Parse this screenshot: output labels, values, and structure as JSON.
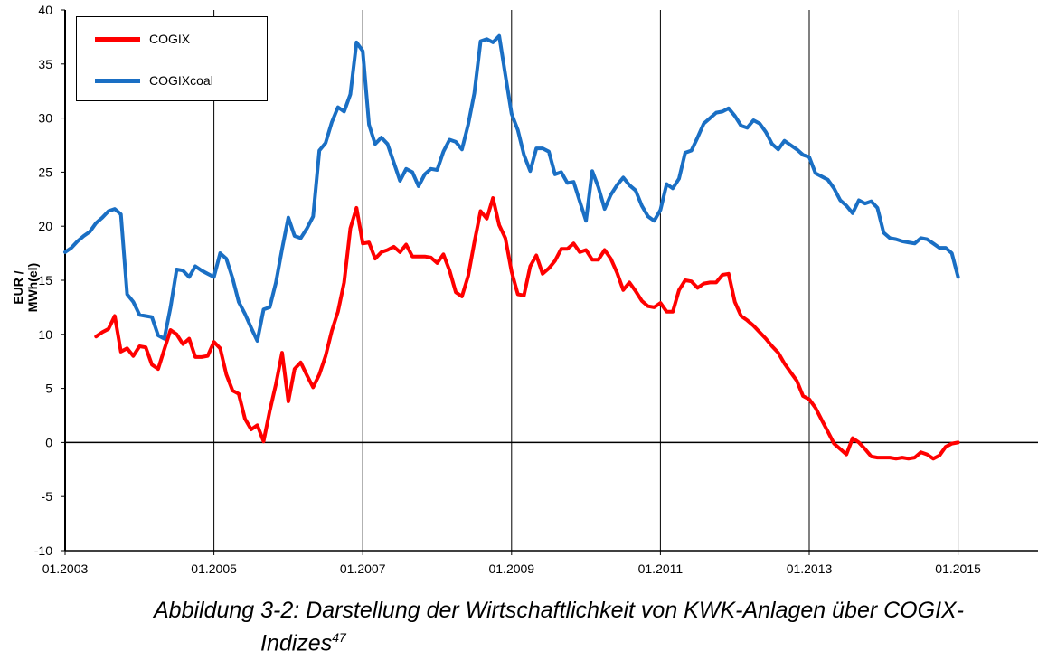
{
  "chart_data": {
    "type": "line",
    "ylabel": "EUR / MWh(el)",
    "xlabel": "",
    "ylim": [
      -10,
      40
    ],
    "yticks": [
      "40",
      "35",
      "30",
      "25",
      "20",
      "15",
      "10",
      "5",
      "0",
      "-5",
      "-10"
    ],
    "xticks": [
      "01.2003",
      "01.2005",
      "01.2007",
      "01.2009",
      "01.2011",
      "01.2013",
      "01.2015"
    ],
    "grid": "vertical at x ticks",
    "legend_position": "top-left",
    "series": [
      {
        "name": "COGIX",
        "color": "#ff0000",
        "points": [
          [
            "2003-06",
            9.8
          ],
          [
            "2003-07",
            10.2
          ],
          [
            "2003-08",
            10.5
          ],
          [
            "2003-09",
            11.7
          ],
          [
            "2003-10",
            8.4
          ],
          [
            "2003-11",
            8.7
          ],
          [
            "2003-12",
            8.0
          ],
          [
            "2004-01",
            8.9
          ],
          [
            "2004-02",
            8.8
          ],
          [
            "2004-03",
            7.2
          ],
          [
            "2004-04",
            6.8
          ],
          [
            "2004-05",
            8.6
          ],
          [
            "2004-06",
            10.4
          ],
          [
            "2004-07",
            10.0
          ],
          [
            "2004-08",
            9.1
          ],
          [
            "2004-09",
            9.6
          ],
          [
            "2004-10",
            7.9
          ],
          [
            "2004-11",
            7.9
          ],
          [
            "2004-12",
            8.0
          ],
          [
            "2005-01",
            9.3
          ],
          [
            "2005-02",
            8.7
          ],
          [
            "2005-03",
            6.3
          ],
          [
            "2005-04",
            4.8
          ],
          [
            "2005-05",
            4.5
          ],
          [
            "2005-06",
            2.2
          ],
          [
            "2005-07",
            1.2
          ],
          [
            "2005-08",
            1.6
          ],
          [
            "2005-09",
            0.1
          ],
          [
            "2005-10",
            2.9
          ],
          [
            "2005-11",
            5.4
          ],
          [
            "2005-12",
            8.3
          ],
          [
            "2006-01",
            3.8
          ],
          [
            "2006-02",
            6.8
          ],
          [
            "2006-03",
            7.4
          ],
          [
            "2006-04",
            6.2
          ],
          [
            "2006-05",
            5.1
          ],
          [
            "2006-06",
            6.3
          ],
          [
            "2006-07",
            8.0
          ],
          [
            "2006-08",
            10.3
          ],
          [
            "2006-09",
            12.1
          ],
          [
            "2006-10",
            14.8
          ],
          [
            "2006-11",
            19.8
          ],
          [
            "2006-12",
            21.7
          ],
          [
            "2007-01",
            18.4
          ],
          [
            "2007-02",
            18.5
          ],
          [
            "2007-03",
            17.0
          ],
          [
            "2007-04",
            17.6
          ],
          [
            "2007-05",
            17.8
          ],
          [
            "2007-06",
            18.1
          ],
          [
            "2007-07",
            17.6
          ],
          [
            "2007-08",
            18.3
          ],
          [
            "2007-09",
            17.2
          ],
          [
            "2007-10",
            17.2
          ],
          [
            "2007-11",
            17.2
          ],
          [
            "2007-12",
            17.1
          ],
          [
            "2008-01",
            16.6
          ],
          [
            "2008-02",
            17.4
          ],
          [
            "2008-03",
            15.9
          ],
          [
            "2008-04",
            13.9
          ],
          [
            "2008-05",
            13.5
          ],
          [
            "2008-06",
            15.4
          ],
          [
            "2008-07",
            18.5
          ],
          [
            "2008-08",
            21.4
          ],
          [
            "2008-09",
            20.7
          ],
          [
            "2008-10",
            22.6
          ],
          [
            "2008-11",
            20.1
          ],
          [
            "2008-12",
            18.9
          ],
          [
            "2009-01",
            15.8
          ],
          [
            "2009-02",
            13.7
          ],
          [
            "2009-03",
            13.6
          ],
          [
            "2009-04",
            16.3
          ],
          [
            "2009-05",
            17.3
          ],
          [
            "2009-06",
            15.6
          ],
          [
            "2009-07",
            16.1
          ],
          [
            "2009-08",
            16.8
          ],
          [
            "2009-09",
            17.9
          ],
          [
            "2009-10",
            17.9
          ],
          [
            "2009-11",
            18.4
          ],
          [
            "2009-12",
            17.6
          ],
          [
            "2010-01",
            17.8
          ],
          [
            "2010-02",
            16.9
          ],
          [
            "2010-03",
            16.9
          ],
          [
            "2010-04",
            17.8
          ],
          [
            "2010-05",
            17.0
          ],
          [
            "2010-06",
            15.7
          ],
          [
            "2010-07",
            14.1
          ],
          [
            "2010-08",
            14.8
          ],
          [
            "2010-09",
            14.0
          ],
          [
            "2010-10",
            13.1
          ],
          [
            "2010-11",
            12.6
          ],
          [
            "2010-12",
            12.5
          ],
          [
            "2011-01",
            12.9
          ],
          [
            "2011-02",
            12.1
          ],
          [
            "2011-03",
            12.1
          ],
          [
            "2011-04",
            14.1
          ],
          [
            "2011-05",
            15.0
          ],
          [
            "2011-06",
            14.9
          ],
          [
            "2011-07",
            14.3
          ],
          [
            "2011-08",
            14.7
          ],
          [
            "2011-09",
            14.8
          ],
          [
            "2011-10",
            14.8
          ],
          [
            "2011-11",
            15.5
          ],
          [
            "2011-12",
            15.6
          ],
          [
            "2012-01",
            13.0
          ],
          [
            "2012-02",
            11.7
          ],
          [
            "2012-03",
            11.3
          ],
          [
            "2012-04",
            10.8
          ],
          [
            "2012-05",
            10.2
          ],
          [
            "2012-06",
            9.6
          ],
          [
            "2012-07",
            8.9
          ],
          [
            "2012-08",
            8.3
          ],
          [
            "2012-09",
            7.3
          ],
          [
            "2012-10",
            6.5
          ],
          [
            "2012-11",
            5.7
          ],
          [
            "2012-12",
            4.3
          ],
          [
            "2013-01",
            4.0
          ],
          [
            "2013-02",
            3.2
          ],
          [
            "2013-03",
            2.1
          ],
          [
            "2013-04",
            1.0
          ],
          [
            "2013-05",
            -0.1
          ],
          [
            "2013-06",
            -0.6
          ],
          [
            "2013-07",
            -1.1
          ],
          [
            "2013-08",
            0.4
          ],
          [
            "2013-09",
            0.0
          ],
          [
            "2013-10",
            -0.6
          ],
          [
            "2013-11",
            -1.3
          ],
          [
            "2013-12",
            -1.4
          ],
          [
            "2014-01",
            -1.4
          ],
          [
            "2014-02",
            -1.4
          ],
          [
            "2014-03",
            -1.5
          ],
          [
            "2014-04",
            -1.4
          ],
          [
            "2014-05",
            -1.5
          ],
          [
            "2014-06",
            -1.4
          ],
          [
            "2014-07",
            -0.9
          ],
          [
            "2014-08",
            -1.1
          ],
          [
            "2014-09",
            -1.5
          ],
          [
            "2014-10",
            -1.2
          ],
          [
            "2014-11",
            -0.4
          ],
          [
            "2014-12",
            -0.1
          ],
          [
            "2015-01",
            0.0
          ]
        ]
      },
      {
        "name": "COGIXcoal",
        "color": "#1a6fc4",
        "points": [
          [
            "2003-01",
            17.6
          ],
          [
            "2003-02",
            18.0
          ],
          [
            "2003-03",
            18.6
          ],
          [
            "2003-04",
            19.1
          ],
          [
            "2003-05",
            19.5
          ],
          [
            "2003-06",
            20.3
          ],
          [
            "2003-07",
            20.8
          ],
          [
            "2003-08",
            21.4
          ],
          [
            "2003-09",
            21.6
          ],
          [
            "2003-10",
            21.1
          ],
          [
            "2003-11",
            13.7
          ],
          [
            "2003-12",
            13.0
          ],
          [
            "2004-01",
            11.8
          ],
          [
            "2004-02",
            11.7
          ],
          [
            "2004-03",
            11.6
          ],
          [
            "2004-04",
            9.9
          ],
          [
            "2004-05",
            9.6
          ],
          [
            "2004-06",
            12.5
          ],
          [
            "2004-07",
            16.0
          ],
          [
            "2004-08",
            15.9
          ],
          [
            "2004-09",
            15.3
          ],
          [
            "2004-10",
            16.3
          ],
          [
            "2004-11",
            15.9
          ],
          [
            "2004-12",
            15.6
          ],
          [
            "2005-01",
            15.3
          ],
          [
            "2005-02",
            17.5
          ],
          [
            "2005-03",
            17.0
          ],
          [
            "2005-04",
            15.2
          ],
          [
            "2005-05",
            13.0
          ],
          [
            "2005-06",
            11.9
          ],
          [
            "2005-07",
            10.6
          ],
          [
            "2005-08",
            9.4
          ],
          [
            "2005-09",
            12.3
          ],
          [
            "2005-10",
            12.5
          ],
          [
            "2005-11",
            14.8
          ],
          [
            "2005-12",
            17.9
          ],
          [
            "2006-01",
            20.8
          ],
          [
            "2006-02",
            19.1
          ],
          [
            "2006-03",
            18.9
          ],
          [
            "2006-04",
            19.8
          ],
          [
            "2006-05",
            20.9
          ],
          [
            "2006-06",
            27.0
          ],
          [
            "2006-07",
            27.7
          ],
          [
            "2006-08",
            29.6
          ],
          [
            "2006-09",
            31.0
          ],
          [
            "2006-10",
            30.6
          ],
          [
            "2006-11",
            32.2
          ],
          [
            "2006-12",
            37.0
          ],
          [
            "2007-01",
            36.2
          ],
          [
            "2007-02",
            29.4
          ],
          [
            "2007-03",
            27.6
          ],
          [
            "2007-04",
            28.2
          ],
          [
            "2007-05",
            27.6
          ],
          [
            "2007-06",
            25.9
          ],
          [
            "2007-07",
            24.2
          ],
          [
            "2007-08",
            25.3
          ],
          [
            "2007-09",
            25.0
          ],
          [
            "2007-10",
            23.7
          ],
          [
            "2007-11",
            24.8
          ],
          [
            "2007-12",
            25.3
          ],
          [
            "2008-01",
            25.2
          ],
          [
            "2008-02",
            26.9
          ],
          [
            "2008-03",
            28.0
          ],
          [
            "2008-04",
            27.8
          ],
          [
            "2008-05",
            27.1
          ],
          [
            "2008-06",
            29.4
          ],
          [
            "2008-07",
            32.3
          ],
          [
            "2008-08",
            37.1
          ],
          [
            "2008-09",
            37.3
          ],
          [
            "2008-10",
            37.0
          ],
          [
            "2008-11",
            37.6
          ],
          [
            "2008-12",
            34.0
          ],
          [
            "2009-01",
            30.4
          ],
          [
            "2009-02",
            28.9
          ],
          [
            "2009-03",
            26.6
          ],
          [
            "2009-04",
            25.1
          ],
          [
            "2009-05",
            27.2
          ],
          [
            "2009-06",
            27.2
          ],
          [
            "2009-07",
            26.9
          ],
          [
            "2009-08",
            24.8
          ],
          [
            "2009-09",
            25.0
          ],
          [
            "2009-10",
            24.0
          ],
          [
            "2009-11",
            24.1
          ],
          [
            "2009-12",
            22.3
          ],
          [
            "2010-01",
            20.5
          ],
          [
            "2010-02",
            25.1
          ],
          [
            "2010-03",
            23.6
          ],
          [
            "2010-04",
            21.6
          ],
          [
            "2010-05",
            22.9
          ],
          [
            "2010-06",
            23.8
          ],
          [
            "2010-07",
            24.5
          ],
          [
            "2010-08",
            23.8
          ],
          [
            "2010-09",
            23.3
          ],
          [
            "2010-10",
            21.9
          ],
          [
            "2010-11",
            20.9
          ],
          [
            "2010-12",
            20.5
          ],
          [
            "2011-01",
            21.5
          ],
          [
            "2011-02",
            23.9
          ],
          [
            "2011-03",
            23.5
          ],
          [
            "2011-04",
            24.4
          ],
          [
            "2011-05",
            26.8
          ],
          [
            "2011-06",
            27.0
          ],
          [
            "2011-07",
            28.2
          ],
          [
            "2011-08",
            29.5
          ],
          [
            "2011-09",
            30.0
          ],
          [
            "2011-10",
            30.5
          ],
          [
            "2011-11",
            30.6
          ],
          [
            "2011-12",
            30.9
          ],
          [
            "2012-01",
            30.2
          ],
          [
            "2012-02",
            29.3
          ],
          [
            "2012-03",
            29.1
          ],
          [
            "2012-04",
            29.8
          ],
          [
            "2012-05",
            29.5
          ],
          [
            "2012-06",
            28.7
          ],
          [
            "2012-07",
            27.6
          ],
          [
            "2012-08",
            27.1
          ],
          [
            "2012-09",
            27.9
          ],
          [
            "2012-10",
            27.5
          ],
          [
            "2012-11",
            27.1
          ],
          [
            "2012-12",
            26.6
          ],
          [
            "2013-01",
            26.4
          ],
          [
            "2013-02",
            24.9
          ],
          [
            "2013-03",
            24.6
          ],
          [
            "2013-04",
            24.3
          ],
          [
            "2013-05",
            23.5
          ],
          [
            "2013-06",
            22.4
          ],
          [
            "2013-07",
            21.9
          ],
          [
            "2013-08",
            21.2
          ],
          [
            "2013-09",
            22.4
          ],
          [
            "2013-10",
            22.1
          ],
          [
            "2013-11",
            22.3
          ],
          [
            "2013-12",
            21.7
          ],
          [
            "2014-01",
            19.4
          ],
          [
            "2014-02",
            18.9
          ],
          [
            "2014-03",
            18.8
          ],
          [
            "2014-04",
            18.6
          ],
          [
            "2014-05",
            18.5
          ],
          [
            "2014-06",
            18.4
          ],
          [
            "2014-07",
            18.9
          ],
          [
            "2014-08",
            18.8
          ],
          [
            "2014-09",
            18.4
          ],
          [
            "2014-10",
            18.0
          ],
          [
            "2014-11",
            18.0
          ],
          [
            "2014-12",
            17.5
          ],
          [
            "2015-01",
            15.3
          ]
        ]
      }
    ]
  },
  "caption": {
    "line1": "Abbildung 3-2: Darstellung der Wirtschaftlichkeit von KWK-Anlagen über COGIX-",
    "line2": "Indizes",
    "footnote": "47"
  }
}
